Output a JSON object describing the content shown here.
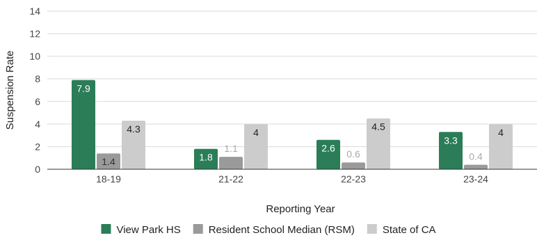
{
  "chart_data": {
    "type": "bar",
    "xlabel": "Reporting Year",
    "ylabel": "Suspension Rate",
    "ylim": [
      0,
      14
    ],
    "yticks": [
      "0",
      "2",
      "4",
      "6",
      "8",
      "10",
      "12",
      "14"
    ],
    "grid": true,
    "legend_position": "bottom",
    "categories": [
      "18-19",
      "21-22",
      "22-23",
      "23-24"
    ],
    "series": [
      {
        "name": "View Park HS",
        "color": "#2a7d57",
        "label_color": "#ffffff",
        "values": [
          7.9,
          1.8,
          2.6,
          3.3
        ],
        "labels": [
          "7.9",
          "1.8",
          "2.6",
          "3.3"
        ]
      },
      {
        "name": "Resident School Median (RSM)",
        "color": "#9a9a9a",
        "label_color": "#333333",
        "values": [
          1.4,
          1.1,
          0.6,
          0.4
        ],
        "labels": [
          "1.4",
          "1.1",
          "0.6",
          "0.4"
        ]
      },
      {
        "name": "State of CA",
        "color": "#cccccc",
        "label_color": "#222222",
        "values": [
          4.3,
          4,
          4.5,
          4
        ],
        "labels": [
          "4.3",
          "4",
          "4.5",
          "4"
        ]
      }
    ]
  }
}
